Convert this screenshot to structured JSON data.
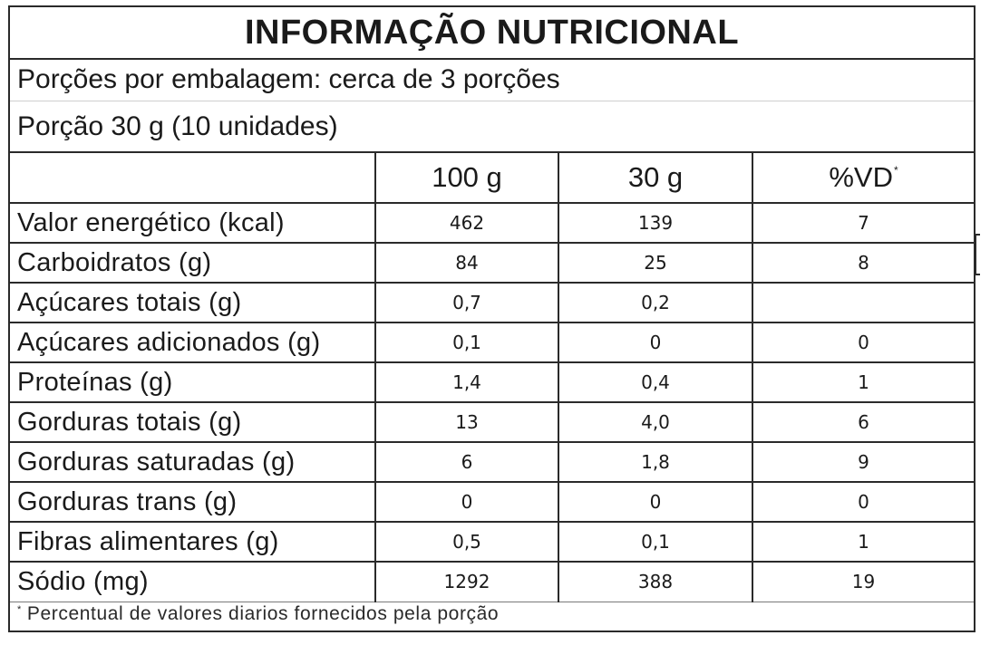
{
  "title": "INFORMAÇÃO NUTRICIONAL",
  "servings_per_package": "Porções por embalagem: cerca de 3 porções",
  "portion": "Porção 30 g (10 unidades)",
  "columns": {
    "name": "",
    "per100": "100 g",
    "per_portion": "30 g",
    "dv": "%VD",
    "dv_mark": "*"
  },
  "rows": [
    {
      "name": "Valor energético (kcal)",
      "per100": "462",
      "per_portion": "139",
      "dv": "7"
    },
    {
      "name": "Carboidratos (g)",
      "per100": "84",
      "per_portion": "25",
      "dv": "8"
    },
    {
      "name": "Açúcares totais (g)",
      "per100": "0,7",
      "per_portion": "0,2",
      "dv": ""
    },
    {
      "name": "Açúcares adicionados (g)",
      "per100": "0,1",
      "per_portion": "0",
      "dv": "0"
    },
    {
      "name": "Proteínas (g)",
      "per100": "1,4",
      "per_portion": "0,4",
      "dv": "1"
    },
    {
      "name": "Gorduras totais (g)",
      "per100": "13",
      "per_portion": "4,0",
      "dv": "6"
    },
    {
      "name": "Gorduras saturadas (g)",
      "per100": "6",
      "per_portion": "1,8",
      "dv": "9"
    },
    {
      "name": "Gorduras trans (g)",
      "per100": "0",
      "per_portion": "0",
      "dv": "0"
    },
    {
      "name": "Fibras alimentares (g)",
      "per100": "0,5",
      "per_portion": "0,1",
      "dv": "1"
    },
    {
      "name": "Sódio (mg)",
      "per100": "1292",
      "per_portion": "388",
      "dv": "19"
    }
  ],
  "footnote": {
    "mark": "*",
    "text": "Percentual de valores diarios fornecidos pela porção"
  }
}
